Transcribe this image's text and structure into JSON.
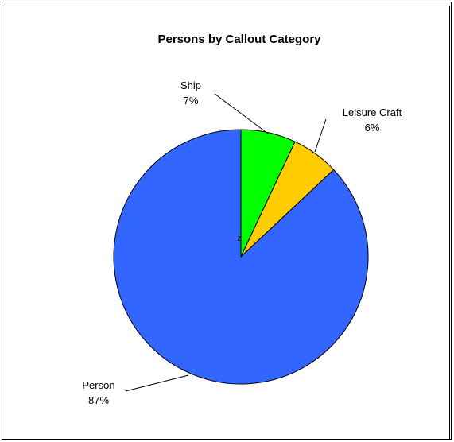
{
  "chart_data": {
    "type": "pie",
    "title": "Persons by Callout Category",
    "slices": [
      {
        "label": "Ship",
        "value": 7,
        "display": "7%",
        "color": "#00ff00"
      },
      {
        "label": "Leisure Craft",
        "value": 6,
        "display": "6%",
        "color": "#ffcc00"
      },
      {
        "label": "Person",
        "value": 87,
        "display": "87%",
        "color": "#3366ff"
      }
    ],
    "center_marker": "z"
  }
}
